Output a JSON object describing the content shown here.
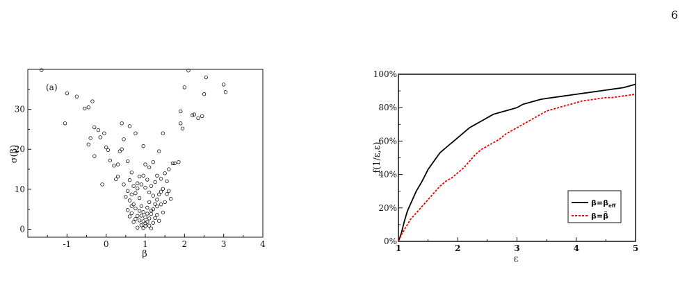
{
  "page": {
    "number": "6"
  },
  "chart_data": [
    {
      "type": "scatter",
      "panel_label": "(a)",
      "xlabel": "β",
      "ylabel": "σ(β)",
      "xlim": [
        -2,
        4
      ],
      "ylim": [
        -2,
        40
      ],
      "xticks": [
        "-1",
        "0",
        "1",
        "2",
        "3",
        "4"
      ],
      "yticks": [
        "0",
        "10",
        "20",
        "30"
      ],
      "marker": "open-circle",
      "points": [
        [
          -1.65,
          39.8
        ],
        [
          -1.0,
          34.0
        ],
        [
          -0.75,
          33.2
        ],
        [
          -1.05,
          26.5
        ],
        [
          -0.55,
          30.2
        ],
        [
          -0.45,
          30.5
        ],
        [
          -0.35,
          32.0
        ],
        [
          -0.3,
          25.5
        ],
        [
          -0.2,
          24.8
        ],
        [
          -0.05,
          24.0
        ],
        [
          -0.4,
          22.8
        ],
        [
          -0.45,
          21.2
        ],
        [
          -0.3,
          18.3
        ],
        [
          -0.15,
          23.0
        ],
        [
          0.0,
          20.5
        ],
        [
          0.05,
          19.8
        ],
        [
          -0.1,
          11.2
        ],
        [
          0.2,
          15.9
        ],
        [
          0.3,
          16.2
        ],
        [
          0.35,
          19.5
        ],
        [
          0.4,
          20.0
        ],
        [
          0.45,
          22.5
        ],
        [
          0.55,
          17.0
        ],
        [
          0.1,
          17.2
        ],
        [
          0.4,
          26.5
        ],
        [
          0.6,
          25.8
        ],
        [
          0.75,
          24.0
        ],
        [
          0.95,
          20.8
        ],
        [
          1.0,
          16.2
        ],
        [
          1.1,
          15.5
        ],
        [
          1.2,
          16.8
        ],
        [
          1.35,
          19.5
        ],
        [
          1.45,
          24.0
        ],
        [
          1.5,
          14.0
        ],
        [
          1.55,
          12.0
        ],
        [
          1.7,
          16.5
        ],
        [
          1.75,
          16.5
        ],
        [
          1.85,
          16.8
        ],
        [
          1.9,
          26.5
        ],
        [
          1.95,
          25.2
        ],
        [
          2.0,
          35.5
        ],
        [
          2.1,
          39.7
        ],
        [
          2.2,
          28.5
        ],
        [
          2.25,
          28.7
        ],
        [
          2.35,
          27.8
        ],
        [
          2.45,
          28.3
        ],
        [
          2.5,
          33.8
        ],
        [
          2.55,
          38.0
        ],
        [
          3.0,
          36.2
        ],
        [
          3.05,
          34.3
        ],
        [
          1.9,
          29.5
        ],
        [
          1.6,
          15.0
        ],
        [
          0.25,
          12.5
        ],
        [
          0.3,
          13.2
        ],
        [
          0.45,
          11.2
        ],
        [
          0.55,
          9.6
        ],
        [
          0.6,
          12.3
        ],
        [
          0.65,
          14.2
        ],
        [
          0.8,
          11.5
        ],
        [
          0.85,
          13.2
        ],
        [
          1.25,
          11.8
        ],
        [
          1.3,
          13.4
        ],
        [
          1.4,
          12.6
        ],
        [
          1.45,
          10.1
        ],
        [
          1.55,
          8.8
        ],
        [
          1.6,
          9.6
        ],
        [
          1.65,
          7.6
        ],
        [
          1.5,
          6.8
        ],
        [
          0.5,
          8.1
        ],
        [
          0.6,
          7.2
        ],
        [
          0.7,
          6.2
        ],
        [
          0.55,
          4.8
        ],
        [
          0.65,
          4.0
        ],
        [
          0.75,
          5.2
        ],
        [
          0.8,
          3.3
        ],
        [
          0.85,
          2.2
        ],
        [
          0.9,
          1.0
        ],
        [
          0.95,
          0.3
        ],
        [
          1.0,
          0.8
        ],
        [
          1.05,
          1.8
        ],
        [
          1.1,
          2.7
        ],
        [
          1.15,
          3.8
        ],
        [
          1.2,
          5.0
        ],
        [
          1.25,
          6.3
        ],
        [
          1.3,
          7.4
        ],
        [
          1.35,
          8.7
        ],
        [
          1.4,
          9.4
        ],
        [
          0.9,
          5.8
        ],
        [
          0.95,
          4.3
        ],
        [
          1.0,
          3.0
        ],
        [
          1.05,
          5.4
        ],
        [
          1.1,
          6.8
        ],
        [
          0.85,
          7.8
        ],
        [
          0.75,
          9.0
        ],
        [
          0.8,
          10.2
        ],
        [
          0.9,
          11.2
        ],
        [
          1.0,
          10.4
        ],
        [
          1.1,
          9.2
        ],
        [
          1.2,
          8.4
        ],
        [
          1.15,
          10.8
        ],
        [
          1.05,
          12.4
        ],
        [
          0.95,
          13.4
        ],
        [
          0.7,
          10.8
        ],
        [
          0.65,
          8.7
        ],
        [
          0.95,
          2.0
        ],
        [
          1.0,
          1.5
        ],
        [
          1.1,
          0.9
        ],
        [
          1.15,
          0.2
        ],
        [
          1.2,
          1.6
        ],
        [
          1.25,
          2.8
        ],
        [
          1.3,
          3.6
        ],
        [
          0.8,
          0.4
        ],
        [
          0.7,
          1.8
        ],
        [
          0.75,
          2.6
        ],
        [
          0.85,
          4.6
        ],
        [
          0.9,
          3.4
        ],
        [
          1.05,
          3.9
        ],
        [
          1.15,
          4.7
        ],
        [
          1.3,
          5.7
        ],
        [
          1.4,
          6.2
        ],
        [
          1.45,
          4.2
        ],
        [
          1.35,
          2.1
        ],
        [
          0.6,
          3.2
        ],
        [
          0.65,
          5.8
        ]
      ]
    },
    {
      "type": "line",
      "xlabel": "ε",
      "ylabel": "f(1/ε,ε)",
      "xlim": [
        1,
        5
      ],
      "ylim": [
        0,
        100
      ],
      "xticks": [
        "1",
        "2",
        "3",
        "4",
        "5"
      ],
      "yticks": [
        "0%",
        "20%",
        "40%",
        "60%",
        "80%",
        "100%"
      ],
      "legend_position": "bottom-right",
      "series": [
        {
          "name": "β=β_eff",
          "legend_label": "β=β",
          "legend_subscript": "eff",
          "color": "#000000",
          "dash": "solid",
          "x": [
            1,
            1.05,
            1.1,
            1.15,
            1.2,
            1.3,
            1.4,
            1.5,
            1.6,
            1.7,
            1.8,
            1.9,
            2.0,
            2.1,
            2.2,
            2.3,
            2.4,
            2.5,
            2.6,
            2.7,
            2.8,
            2.9,
            3.0,
            3.1,
            3.2,
            3.3,
            3.4,
            3.5,
            3.6,
            3.7,
            3.8,
            3.9,
            4.0,
            4.1,
            4.2,
            4.3,
            4.4,
            4.5,
            4.6,
            4.7,
            4.8,
            4.9,
            5.0
          ],
          "y": [
            0,
            5,
            12,
            18,
            22,
            30,
            36,
            43,
            48,
            53,
            56,
            59,
            62,
            65,
            68,
            70,
            72,
            74,
            76,
            77,
            78,
            79,
            80,
            82,
            83,
            84,
            85,
            85.5,
            86,
            86.5,
            87,
            87.5,
            88,
            88.5,
            89,
            89.5,
            90,
            90.5,
            91,
            91.5,
            92,
            93,
            94
          ]
        },
        {
          "name": "β=β̃",
          "legend_label": "β=β̃",
          "color": "#e60000",
          "dash": "dashed",
          "x": [
            1,
            1.05,
            1.1,
            1.15,
            1.2,
            1.3,
            1.4,
            1.5,
            1.6,
            1.7,
            1.8,
            1.9,
            2.0,
            2.1,
            2.2,
            2.3,
            2.4,
            2.5,
            2.6,
            2.7,
            2.8,
            2.9,
            3.0,
            3.1,
            3.2,
            3.3,
            3.4,
            3.5,
            3.6,
            3.7,
            3.8,
            3.9,
            4.0,
            4.1,
            4.2,
            4.3,
            4.4,
            4.5,
            4.6,
            4.7,
            4.8,
            4.9,
            5.0
          ],
          "y": [
            0,
            4,
            7,
            10,
            13,
            17,
            21,
            25,
            29,
            33,
            36,
            38,
            41,
            44,
            48,
            52,
            55,
            57,
            59,
            61,
            64,
            66,
            68,
            70,
            72,
            74,
            76,
            78,
            79,
            80,
            81,
            82,
            83,
            84,
            84.5,
            85,
            85.5,
            86,
            86,
            86.5,
            87,
            87.5,
            88
          ]
        }
      ]
    }
  ]
}
